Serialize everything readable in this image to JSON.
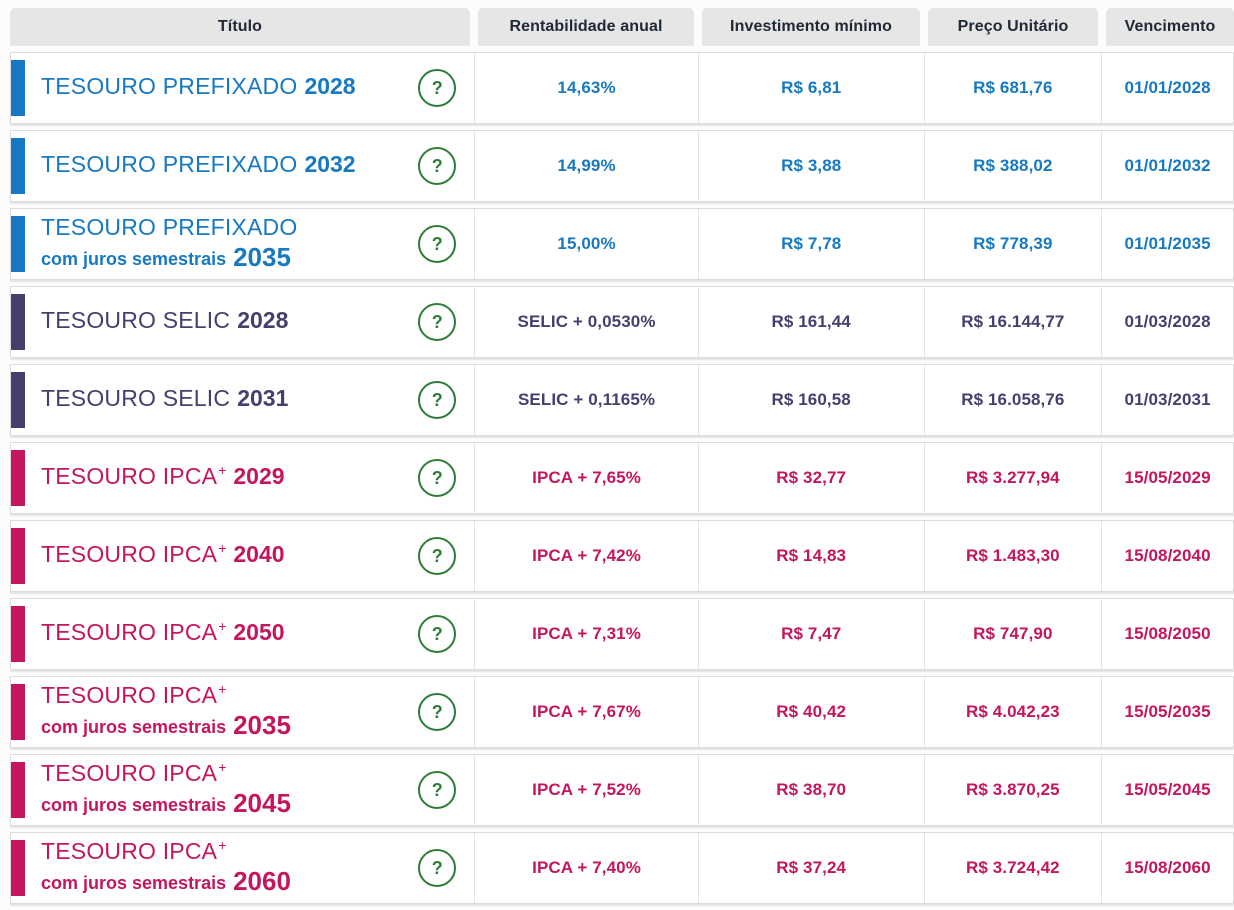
{
  "header": {
    "columns": [
      "Título",
      "Rentabilidade anual",
      "Investimento mínimo",
      "Preço Unitário",
      "Vencimento"
    ]
  },
  "colors": {
    "prefixado": "#1779c1",
    "selic": "#473e6e",
    "ipca": "#c4165e",
    "help_green": "#2e7d36"
  },
  "icons": {
    "help_glyph": "?"
  },
  "bonds": [
    {
      "type": "prefixado",
      "name": "TESOURO PREFIXADO",
      "sup": "",
      "sub": "",
      "year": "2028",
      "rate": "14,63%",
      "min": "R$ 6,81",
      "price": "R$ 681,76",
      "maturity": "01/01/2028"
    },
    {
      "type": "prefixado",
      "name": "TESOURO PREFIXADO",
      "sup": "",
      "sub": "",
      "year": "2032",
      "rate": "14,99%",
      "min": "R$ 3,88",
      "price": "R$ 388,02",
      "maturity": "01/01/2032"
    },
    {
      "type": "prefixado",
      "name": "TESOURO PREFIXADO",
      "sup": "",
      "sub": "com juros semestrais",
      "year": "2035",
      "rate": "15,00%",
      "min": "R$ 7,78",
      "price": "R$ 778,39",
      "maturity": "01/01/2035"
    },
    {
      "type": "selic",
      "name": "TESOURO SELIC",
      "sup": "",
      "sub": "",
      "year": "2028",
      "rate": "SELIC + 0,0530%",
      "min": "R$ 161,44",
      "price": "R$ 16.144,77",
      "maturity": "01/03/2028"
    },
    {
      "type": "selic",
      "name": "TESOURO SELIC",
      "sup": "",
      "sub": "",
      "year": "2031",
      "rate": "SELIC + 0,1165%",
      "min": "R$ 160,58",
      "price": "R$ 16.058,76",
      "maturity": "01/03/2031"
    },
    {
      "type": "ipca",
      "name": "TESOURO IPCA",
      "sup": "+",
      "sub": "",
      "year": "2029",
      "rate": "IPCA + 7,65%",
      "min": "R$ 32,77",
      "price": "R$ 3.277,94",
      "maturity": "15/05/2029"
    },
    {
      "type": "ipca",
      "name": "TESOURO IPCA",
      "sup": "+",
      "sub": "",
      "year": "2040",
      "rate": "IPCA + 7,42%",
      "min": "R$ 14,83",
      "price": "R$ 1.483,30",
      "maturity": "15/08/2040"
    },
    {
      "type": "ipca",
      "name": "TESOURO IPCA",
      "sup": "+",
      "sub": "",
      "year": "2050",
      "rate": "IPCA + 7,31%",
      "min": "R$ 7,47",
      "price": "R$ 747,90",
      "maturity": "15/08/2050"
    },
    {
      "type": "ipca",
      "name": "TESOURO IPCA",
      "sup": "+",
      "sub": "com juros semestrais",
      "year": "2035",
      "rate": "IPCA + 7,67%",
      "min": "R$ 40,42",
      "price": "R$ 4.042,23",
      "maturity": "15/05/2035"
    },
    {
      "type": "ipca",
      "name": "TESOURO IPCA",
      "sup": "+",
      "sub": "com juros semestrais",
      "year": "2045",
      "rate": "IPCA + 7,52%",
      "min": "R$ 38,70",
      "price": "R$ 3.870,25",
      "maturity": "15/05/2045"
    },
    {
      "type": "ipca",
      "name": "TESOURO IPCA",
      "sup": "+",
      "sub": "com juros semestrais",
      "year": "2060",
      "rate": "IPCA + 7,40%",
      "min": "R$ 37,24",
      "price": "R$ 3.724,42",
      "maturity": "15/08/2060"
    }
  ]
}
